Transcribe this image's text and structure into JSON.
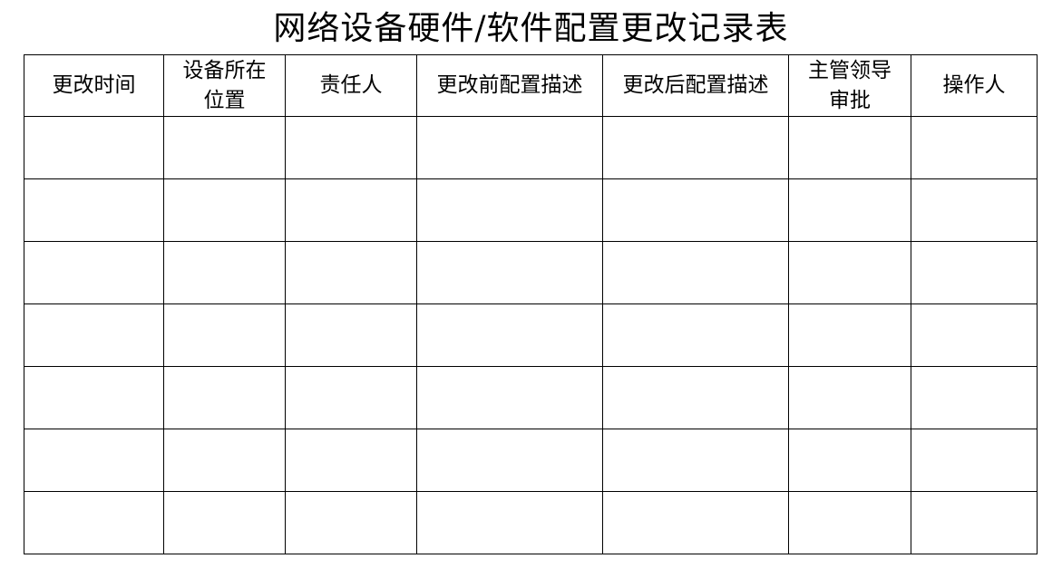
{
  "title": "网络设备硬件/软件配置更改记录表",
  "table": {
    "headers": [
      [
        "更改时间"
      ],
      [
        "设备所在",
        "位置"
      ],
      [
        "责任人"
      ],
      [
        "更改前配置描述"
      ],
      [
        "更改后配置描述"
      ],
      [
        "主管领导",
        "审批"
      ],
      [
        "操作人"
      ]
    ],
    "rows": [
      [
        "",
        "",
        "",
        "",
        "",
        "",
        ""
      ],
      [
        "",
        "",
        "",
        "",
        "",
        "",
        ""
      ],
      [
        "",
        "",
        "",
        "",
        "",
        "",
        ""
      ],
      [
        "",
        "",
        "",
        "",
        "",
        "",
        ""
      ],
      [
        "",
        "",
        "",
        "",
        "",
        "",
        ""
      ],
      [
        "",
        "",
        "",
        "",
        "",
        "",
        ""
      ],
      [
        "",
        "",
        "",
        "",
        "",
        "",
        ""
      ]
    ]
  }
}
